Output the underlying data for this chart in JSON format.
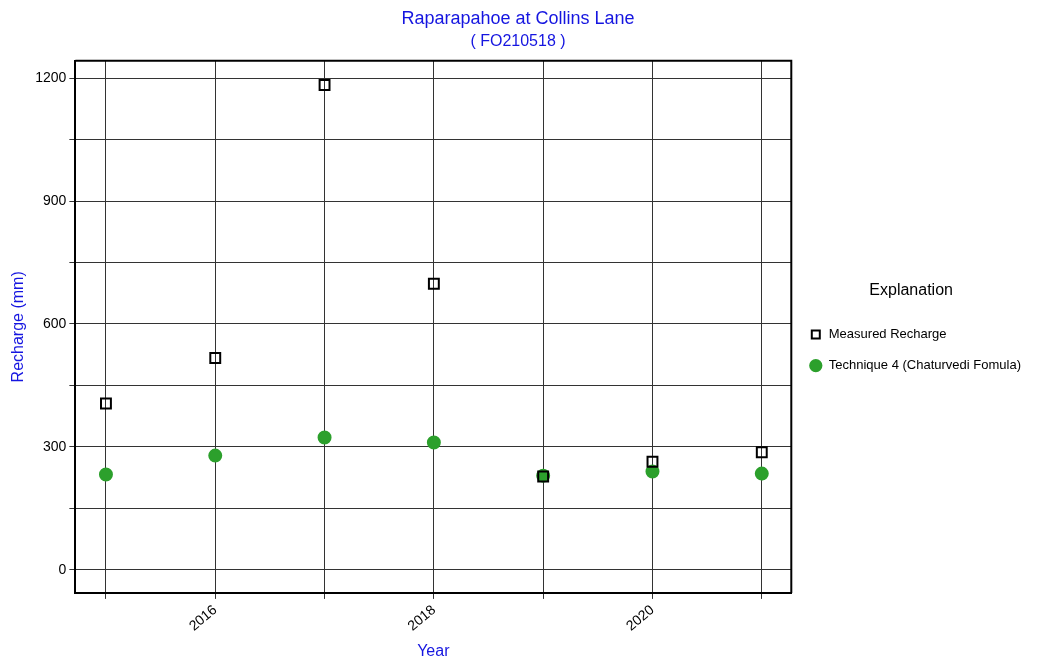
{
  "chart_data": {
    "type": "scatter",
    "title": "Raparapahoe at Collins Lane",
    "subtitle": "( FO210518 )",
    "xlabel": "Year",
    "ylabel": "Recharge (mm)",
    "legend_title": "Explanation",
    "x": [
      2015,
      2016,
      2017,
      2018,
      2019,
      2020,
      2021
    ],
    "series": [
      {
        "name": "Measured Recharge",
        "color": "#000000",
        "marker": "square",
        "values": [
          406,
          517,
          1183,
          698,
          228,
          264,
          287
        ]
      },
      {
        "name": "Technique 4 (Chaturvedi Fomula)",
        "color": "#2ca02c",
        "marker": "circle",
        "values": [
          233,
          279,
          323,
          311,
          230,
          240,
          235
        ]
      }
    ],
    "xlim": [
      2014.72,
      2021.27
    ],
    "xticks": [
      {
        "value": 2015,
        "label": null
      },
      2016,
      {
        "value": 2017,
        "label": null
      },
      2018,
      {
        "value": 2019,
        "label": null
      },
      2020,
      {
        "value": 2021,
        "label": null
      }
    ],
    "ylim": [
      -56,
      1242
    ],
    "yticks": [
      0,
      {
        "value": 150,
        "label": null
      },
      300,
      {
        "value": 450,
        "label": null
      },
      600,
      {
        "value": 750,
        "label": null
      },
      900,
      {
        "value": 1050,
        "label": null
      },
      1200
    ],
    "grid": true,
    "legend": "right"
  }
}
